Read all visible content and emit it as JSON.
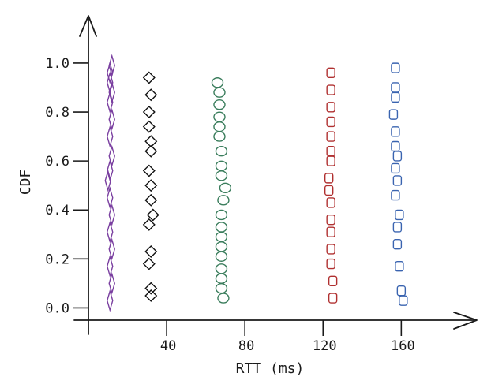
{
  "chart_data": {
    "type": "scatter",
    "title": "",
    "xlabel": "RTT (ms)",
    "ylabel": "CDF",
    "xlim": [
      0,
      197
    ],
    "ylim": [
      -0.05,
      1.18
    ],
    "xticks": [
      40,
      80,
      120,
      160
    ],
    "yticks": [
      0.0,
      0.2,
      0.4,
      0.6,
      0.8,
      1.0
    ],
    "ytick_labels": [
      "0.0",
      "0.2",
      "0.4",
      "0.6",
      "0.8",
      "1.0"
    ],
    "grid": false,
    "legend": "none",
    "series": [
      {
        "marker": "thin-diamond",
        "color": "#7a3fa0",
        "x": [
          11,
          12,
          11,
          12,
          11,
          12,
          11,
          10,
          11,
          12,
          11,
          12,
          11,
          12,
          11,
          11,
          12
        ],
        "y": [
          0.03,
          0.1,
          0.17,
          0.24,
          0.31,
          0.38,
          0.45,
          0.52,
          0.56,
          0.62,
          0.7,
          0.77,
          0.84,
          0.88,
          0.92,
          0.96,
          0.99
        ]
      },
      {
        "marker": "diamond",
        "color": "#111111",
        "x": [
          32,
          32,
          31,
          32,
          31,
          33,
          32,
          32,
          31,
          32,
          32,
          31,
          31,
          32,
          31
        ],
        "y": [
          0.05,
          0.08,
          0.18,
          0.23,
          0.34,
          0.38,
          0.44,
          0.5,
          0.56,
          0.64,
          0.68,
          0.74,
          0.8,
          0.87,
          0.94
        ]
      },
      {
        "marker": "circle",
        "color": "#3a7d5c",
        "x": [
          69,
          68,
          68,
          68,
          68,
          68,
          68,
          68,
          68,
          69,
          70,
          68,
          68,
          68,
          67,
          67,
          67,
          67,
          67,
          66
        ],
        "y": [
          0.04,
          0.08,
          0.12,
          0.16,
          0.21,
          0.25,
          0.29,
          0.33,
          0.38,
          0.44,
          0.49,
          0.54,
          0.58,
          0.64,
          0.7,
          0.74,
          0.78,
          0.83,
          0.88,
          0.92
        ]
      },
      {
        "marker": "square",
        "color": "#b03030",
        "x": [
          125,
          125,
          124,
          124,
          124,
          124,
          124,
          123,
          123,
          124,
          124,
          124,
          124,
          124,
          124,
          124
        ],
        "y": [
          0.04,
          0.11,
          0.18,
          0.24,
          0.31,
          0.36,
          0.43,
          0.48,
          0.53,
          0.6,
          0.64,
          0.7,
          0.76,
          0.82,
          0.89,
          0.96
        ]
      },
      {
        "marker": "square",
        "color": "#3a64b0",
        "x": [
          161,
          160,
          159,
          158,
          158,
          159,
          157,
          158,
          157,
          158,
          157,
          157,
          156,
          157,
          157,
          157
        ],
        "y": [
          0.03,
          0.07,
          0.17,
          0.26,
          0.33,
          0.38,
          0.46,
          0.52,
          0.57,
          0.62,
          0.66,
          0.72,
          0.79,
          0.86,
          0.9,
          0.98
        ]
      }
    ]
  }
}
